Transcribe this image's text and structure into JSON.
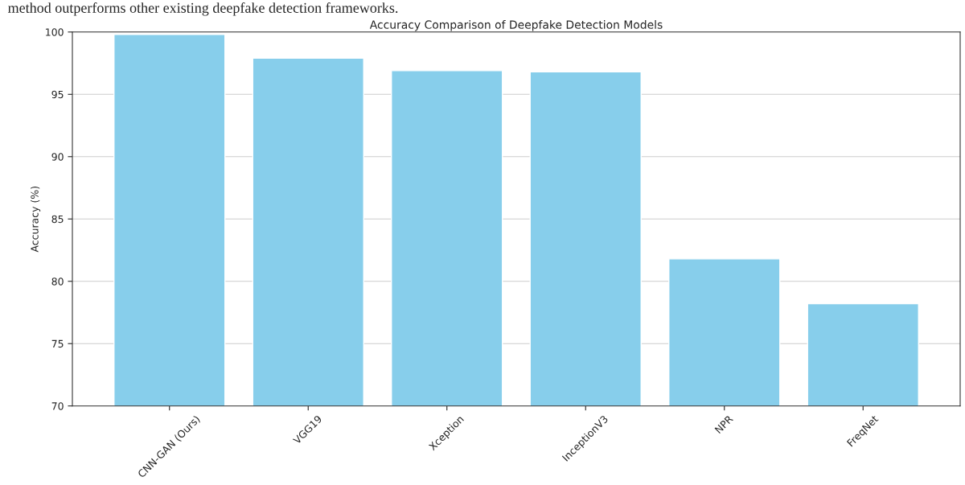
{
  "chart_data": {
    "type": "bar",
    "title": "Accuracy Comparison of Deepfake Detection Models",
    "ylabel": "Accuracy (%)",
    "annotations": [
      "method outperforms other existing deepfake detection frameworks."
    ],
    "categories": [
      "CNN-GAN (Ours)",
      "VGG19",
      "Xception",
      "InceptionV3",
      "NPR",
      "FreqNet"
    ],
    "values": [
      99.8,
      97.9,
      96.9,
      96.8,
      81.8,
      78.2
    ],
    "color": "#87ceeb",
    "ylim": [
      70,
      100
    ],
    "yticks": [
      70,
      75,
      80,
      85,
      90,
      95,
      100
    ],
    "grid": "y"
  }
}
